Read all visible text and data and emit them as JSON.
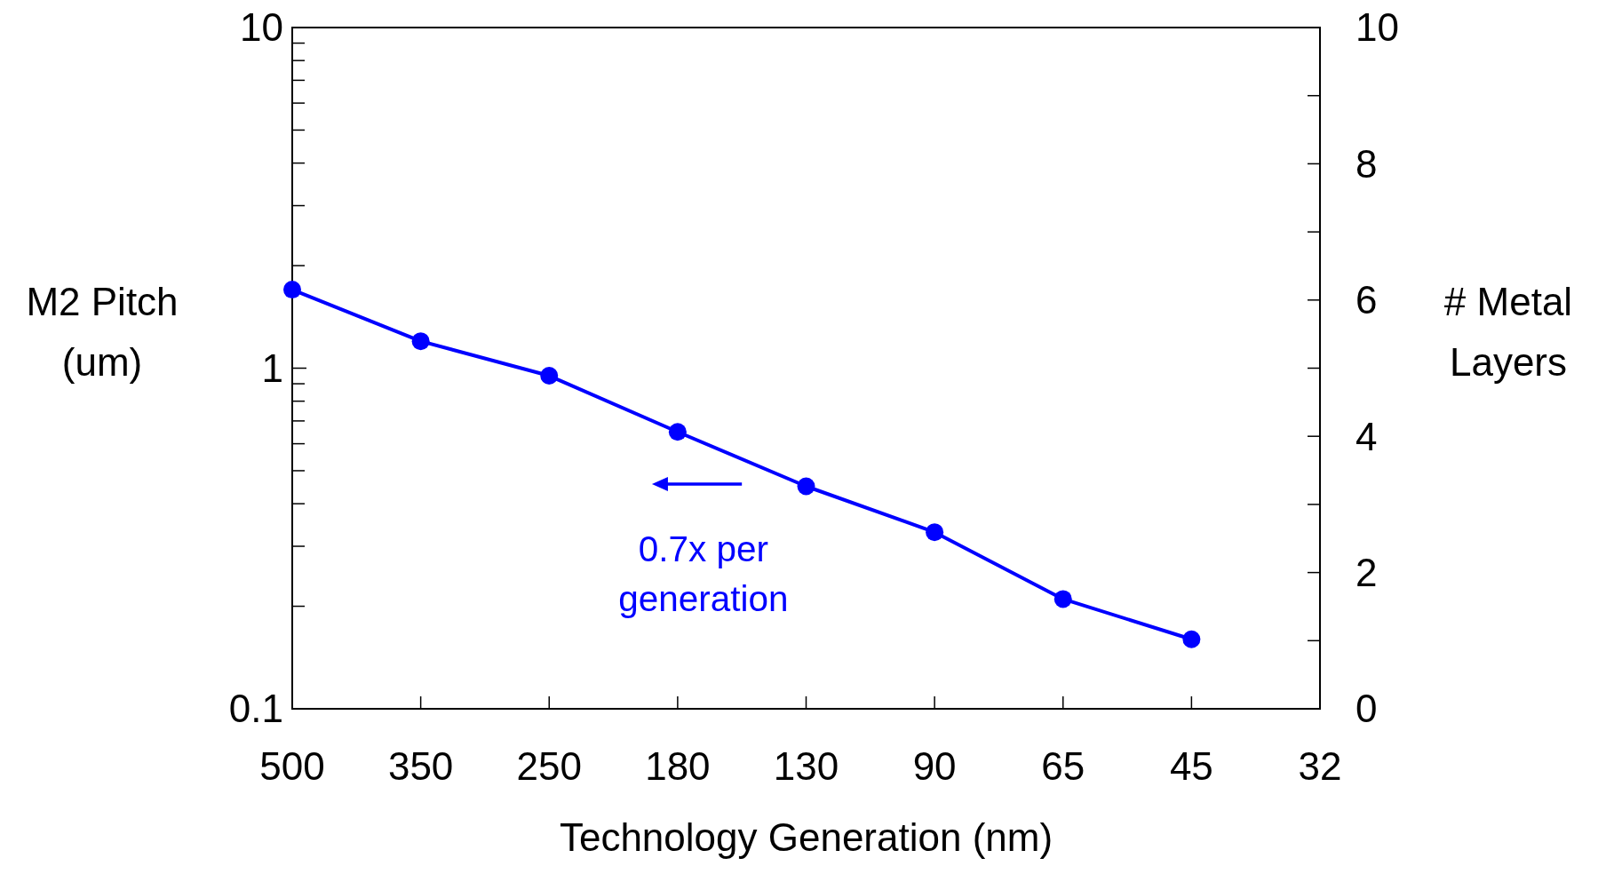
{
  "chart_data": {
    "type": "line",
    "xlabel": "Technology Generation (nm)",
    "ylabel": "M2 Pitch (um)",
    "y2label": "# Metal Layers",
    "categories": [
      "500",
      "350",
      "250",
      "180",
      "130",
      "90",
      "65",
      "45",
      "32"
    ],
    "series": [
      {
        "color": "#0000ff",
        "values": [
          1.7,
          1.2,
          0.95,
          0.65,
          0.45,
          0.33,
          0.21,
          0.16,
          null
        ]
      }
    ],
    "log": "y",
    "ylim": [
      0.1,
      10
    ],
    "yticks": [
      0.1,
      {
        "value": 0.2,
        "label": null
      },
      {
        "value": 0.3,
        "label": null
      },
      {
        "value": 0.4,
        "label": null
      },
      {
        "value": 0.5,
        "label": null
      },
      {
        "value": 0.6,
        "label": null
      },
      {
        "value": 0.7,
        "label": null
      },
      {
        "value": 0.8,
        "label": null
      },
      {
        "value": 0.9,
        "label": null
      },
      1,
      {
        "value": 2,
        "label": null
      },
      {
        "value": 3,
        "label": null
      },
      {
        "value": 4,
        "label": null
      },
      {
        "value": 5,
        "label": null
      },
      {
        "value": 6,
        "label": null
      },
      {
        "value": 7,
        "label": null
      },
      {
        "value": 8,
        "label": null
      },
      {
        "value": 9,
        "label": null
      },
      10
    ],
    "y2lim": [
      0,
      10
    ],
    "y2ticks": [
      0,
      {
        "value": 1,
        "label": null
      },
      2,
      {
        "value": 3,
        "label": null
      },
      4,
      {
        "value": 5,
        "label": null
      },
      6,
      {
        "value": 7,
        "label": null
      },
      8,
      {
        "value": 9,
        "label": null
      },
      10
    ],
    "marker": "circle",
    "line_style": "solid",
    "annotations": [
      "0.7x per generation"
    ]
  }
}
